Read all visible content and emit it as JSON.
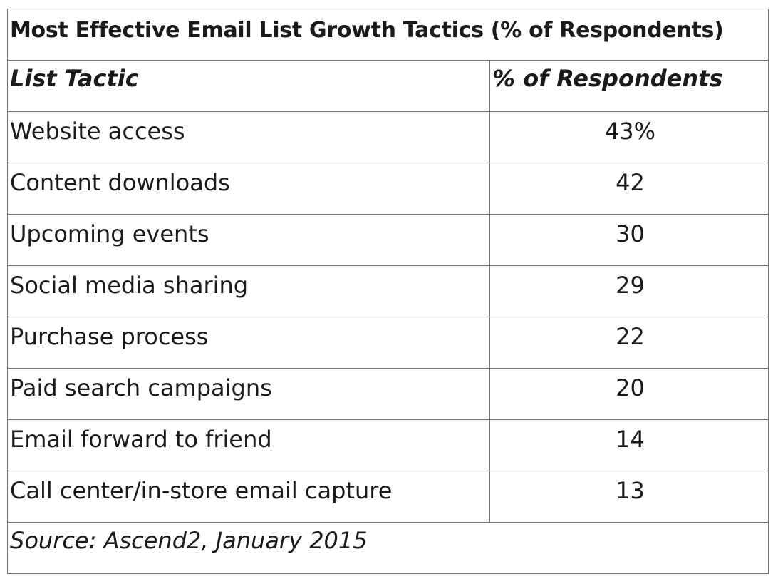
{
  "chart_data": {
    "type": "table",
    "title": "Most Effective Email List Growth Tactics (% of Respondents)",
    "columns": [
      "List Tactic",
      "% of Respondents"
    ],
    "rows": [
      {
        "tactic": "Website access",
        "value": 43,
        "display": "43%"
      },
      {
        "tactic": "Content downloads",
        "value": 42,
        "display": "42"
      },
      {
        "tactic": "Upcoming events",
        "value": 30,
        "display": "30"
      },
      {
        "tactic": "Social media sharing",
        "value": 29,
        "display": "29"
      },
      {
        "tactic": "Purchase process",
        "value": 22,
        "display": "22"
      },
      {
        "tactic": "Paid search campaigns",
        "value": 20,
        "display": "20"
      },
      {
        "tactic": "Email forward to friend",
        "value": 14,
        "display": "14"
      },
      {
        "tactic": "Call center/in-store email capture",
        "value": 13,
        "display": "13"
      }
    ],
    "source": "Source: Ascend2, January 2015"
  },
  "colors": {
    "border": "#6f6f6f",
    "text": "#1a1a1a",
    "background": "#ffffff"
  }
}
